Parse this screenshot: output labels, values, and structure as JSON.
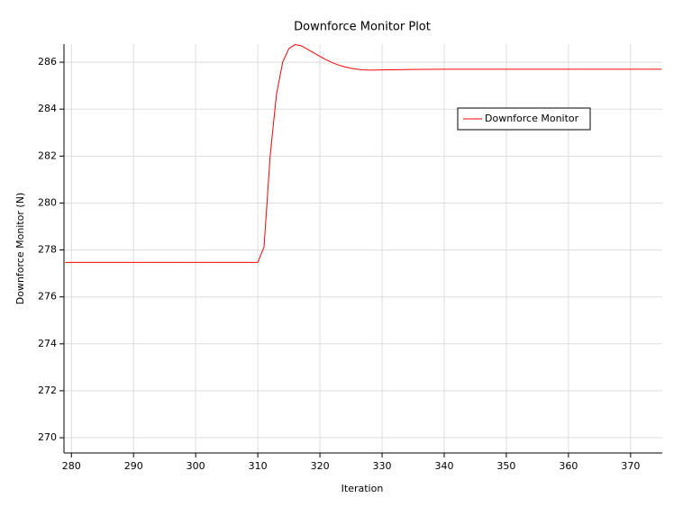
{
  "chart_data": {
    "type": "line",
    "title": "Downforce Monitor Plot",
    "x_label": "Iteration",
    "y_label": "Downforce Monitor (N)",
    "x": [
      279,
      290,
      300,
      310,
      311,
      312,
      313,
      314,
      315,
      316,
      317,
      318,
      319,
      320,
      321,
      322,
      323,
      324,
      325,
      326,
      327,
      328,
      330,
      335,
      340,
      350,
      360,
      375
    ],
    "series": [
      {
        "name": "Downforce Monitor",
        "color": "#ff0000",
        "values": [
          277.47,
          277.47,
          277.47,
          277.47,
          278.13,
          282.05,
          284.62,
          286.0,
          286.58,
          286.75,
          286.7,
          286.55,
          286.4,
          286.25,
          286.1,
          285.98,
          285.88,
          285.8,
          285.74,
          285.7,
          285.67,
          285.66,
          285.67,
          285.69,
          285.7,
          285.7,
          285.7,
          285.7
        ]
      }
    ],
    "xlim": [
      278.8,
      375.1
    ],
    "xticks": [
      280,
      290,
      300,
      310,
      320,
      330,
      340,
      350,
      360,
      370
    ],
    "ylim": [
      269.35,
      286.77
    ],
    "yticks": [
      270,
      272,
      274,
      276,
      278,
      280,
      282,
      284,
      286
    ],
    "grid": true,
    "legend": "upper right"
  }
}
